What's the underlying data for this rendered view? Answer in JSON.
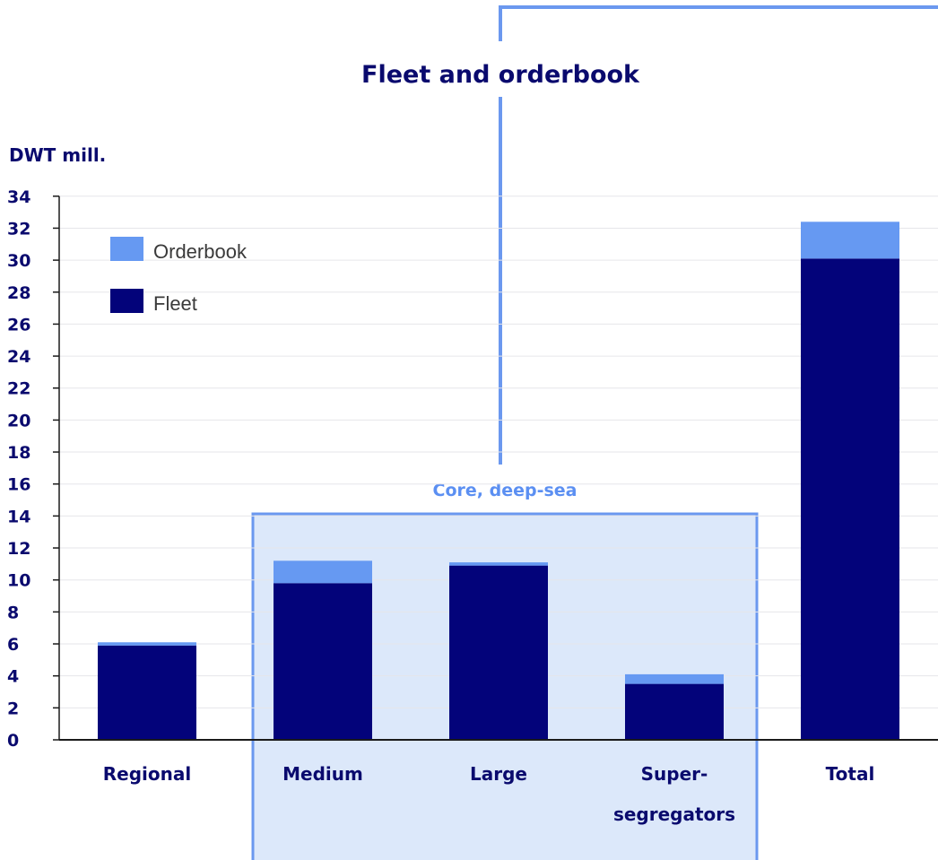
{
  "chart_data": {
    "type": "bar",
    "stacked": true,
    "title": "Fleet and orderbook",
    "ylabel": "DWT mill.",
    "xlabel": "",
    "ylim": [
      0,
      34
    ],
    "yticks": [
      0,
      2,
      4,
      6,
      8,
      10,
      12,
      14,
      16,
      18,
      20,
      22,
      24,
      26,
      28,
      30,
      32,
      34
    ],
    "grid": true,
    "legend_position": "top-left",
    "categories": [
      [
        "Regional"
      ],
      [
        "Medium"
      ],
      [
        "Large"
      ],
      [
        "Super-",
        "segregators"
      ],
      [
        "Total"
      ]
    ],
    "series": [
      {
        "name": "Fleet",
        "color": "#03037a",
        "values": [
          5.9,
          9.8,
          10.9,
          3.5,
          30.1
        ]
      },
      {
        "name": "Orderbook",
        "color": "#6699f2",
        "values": [
          0.2,
          1.4,
          0.2,
          0.6,
          2.3
        ]
      }
    ],
    "annotations": [
      {
        "label": "Core, deep-sea",
        "categories_spanned": [
          "Medium",
          "Large",
          "Super-segregators"
        ]
      }
    ]
  }
}
